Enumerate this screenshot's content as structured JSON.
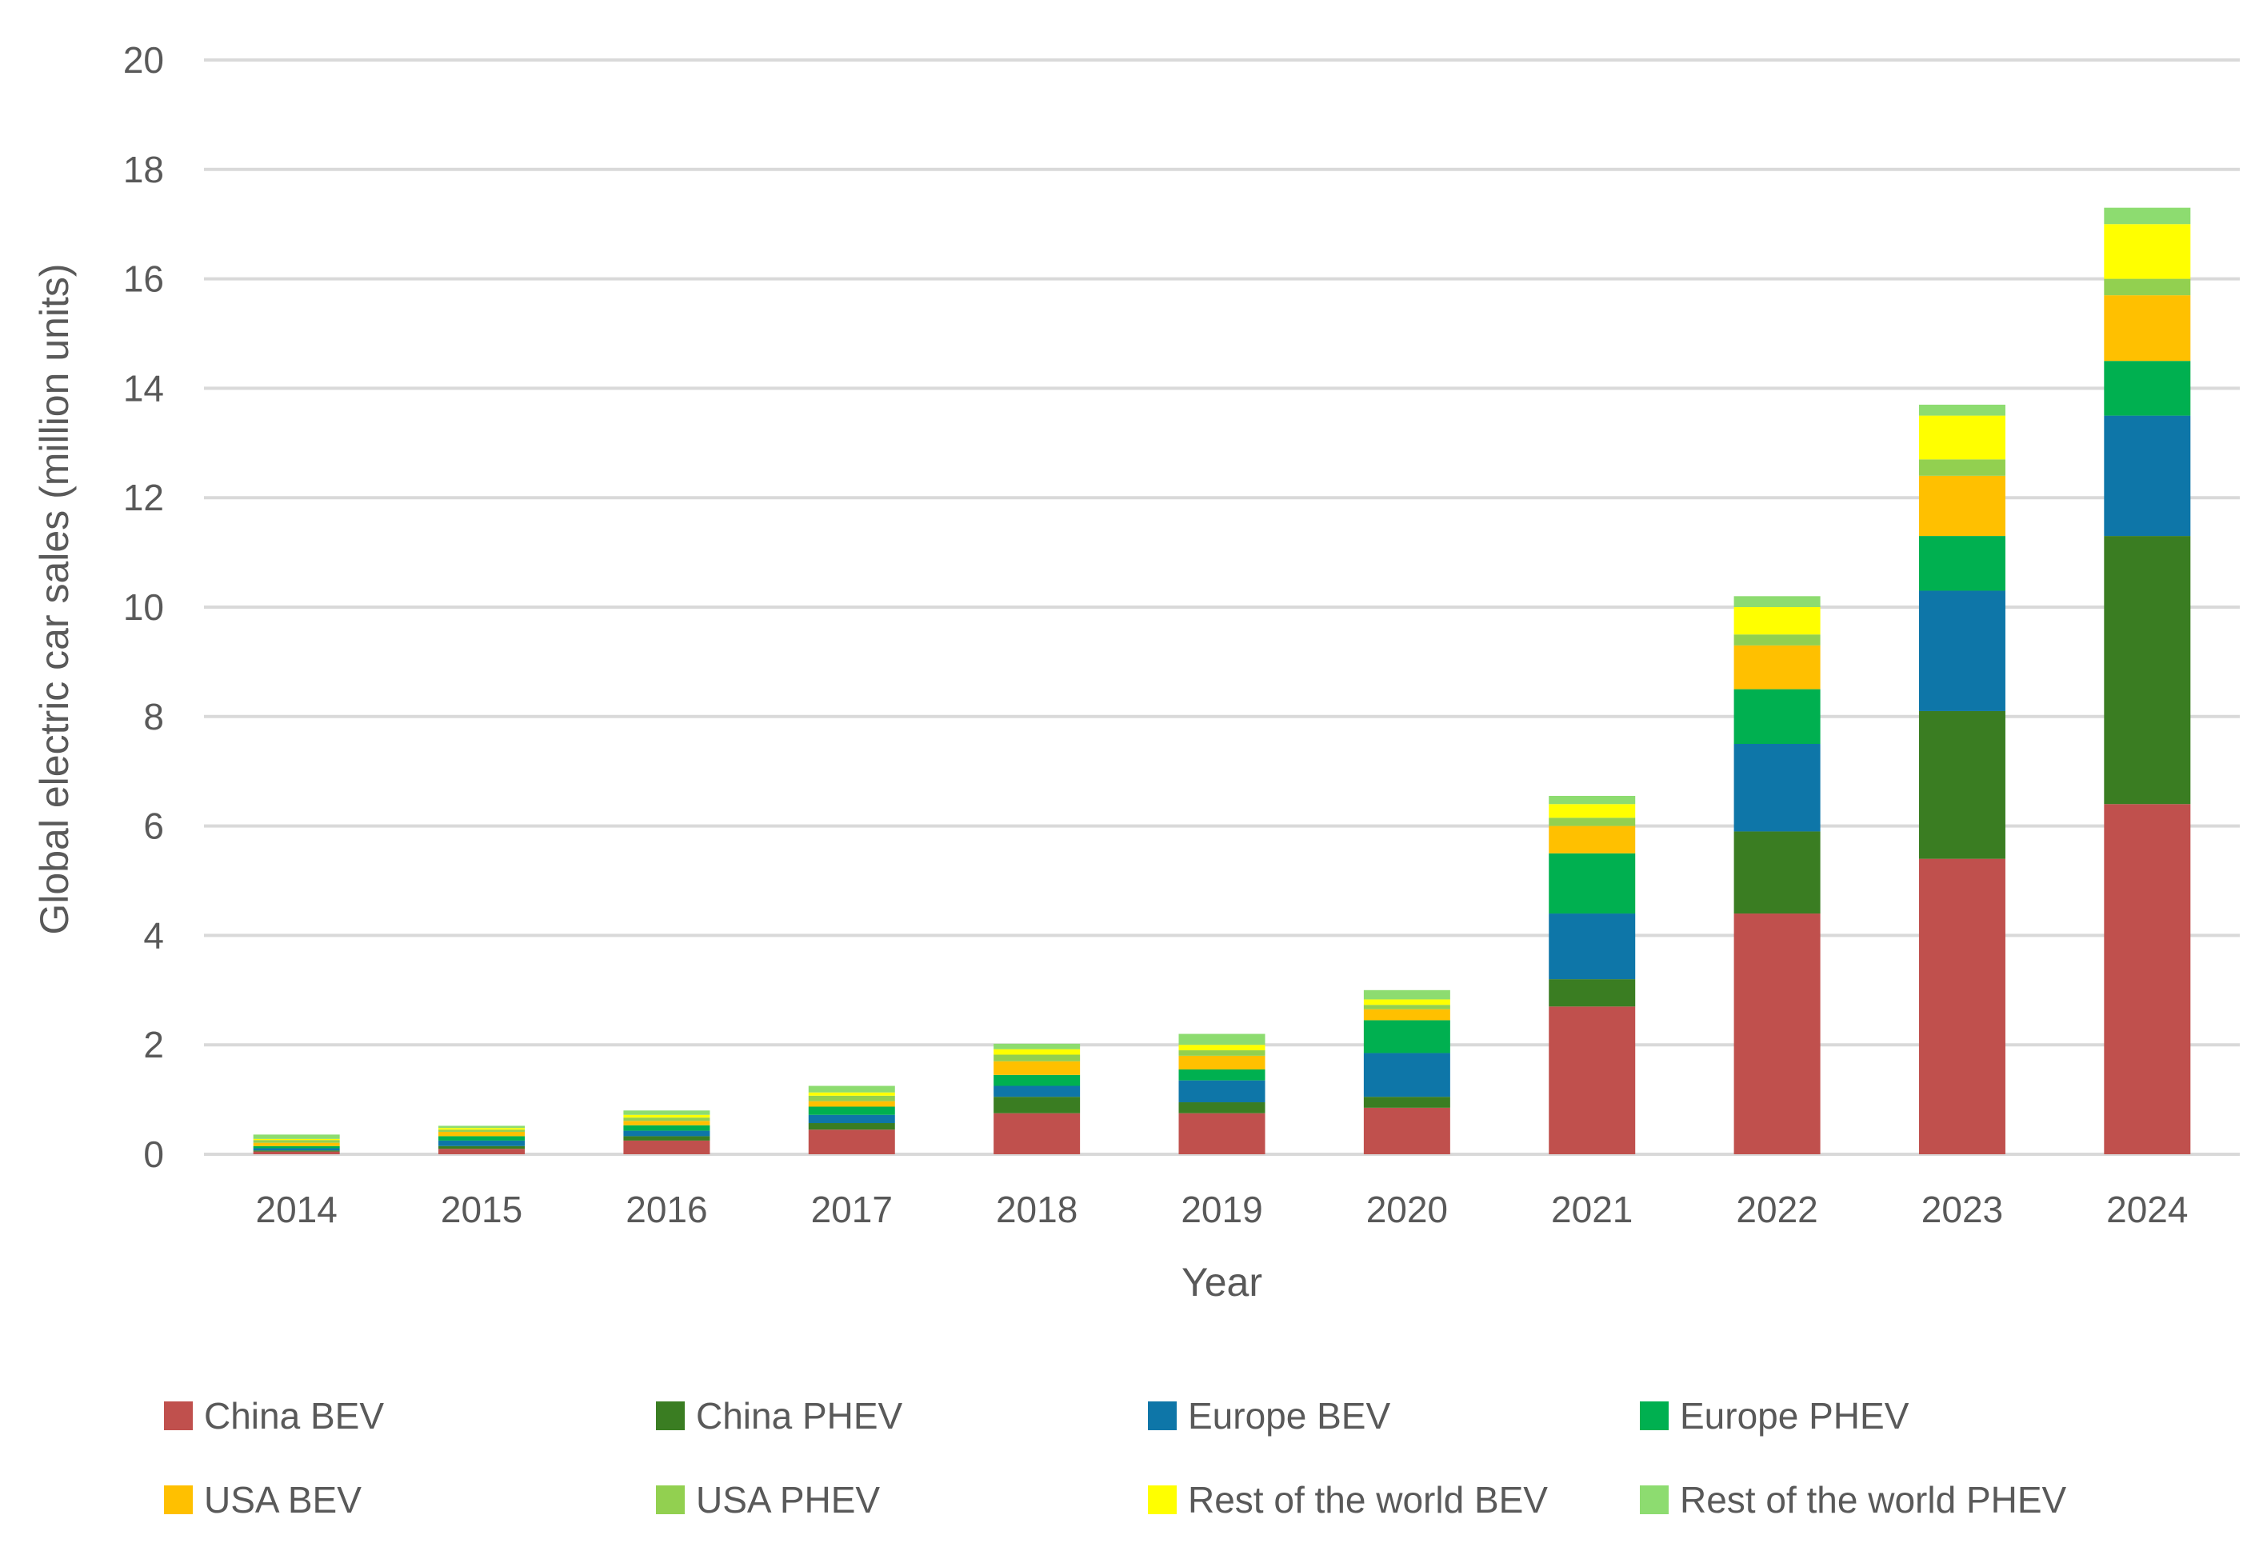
{
  "chart_data": {
    "type": "bar",
    "stacked": true,
    "title": "",
    "xlabel": "Year",
    "ylabel": "Global electric car sales (million units)",
    "ylim": [
      0,
      20
    ],
    "yticks": [
      0,
      2,
      4,
      6,
      8,
      10,
      12,
      14,
      16,
      18,
      20
    ],
    "grid": true,
    "legend_position": "bottom",
    "categories": [
      "2014",
      "2015",
      "2016",
      "2017",
      "2018",
      "2019",
      "2020",
      "2021",
      "2022",
      "2023",
      "2024"
    ],
    "series": [
      {
        "name": "China BEV",
        "color": "#C0504D",
        "values": [
          0.05,
          0.1,
          0.25,
          0.45,
          0.75,
          0.75,
          0.85,
          2.7,
          4.4,
          5.4,
          6.4
        ]
      },
      {
        "name": "China PHEV",
        "color": "#3A7D22",
        "values": [
          0.02,
          0.05,
          0.08,
          0.12,
          0.3,
          0.2,
          0.2,
          0.5,
          1.5,
          2.7,
          4.9
        ]
      },
      {
        "name": "Europe BEV",
        "color": "#0E76A8",
        "values": [
          0.04,
          0.1,
          0.1,
          0.15,
          0.2,
          0.4,
          0.8,
          1.2,
          1.6,
          2.2,
          2.2
        ]
      },
      {
        "name": "Europe PHEV",
        "color": "#00B050",
        "values": [
          0.04,
          0.08,
          0.1,
          0.15,
          0.2,
          0.2,
          0.6,
          1.1,
          1.0,
          1.0,
          1.0
        ]
      },
      {
        "name": "USA BEV",
        "color": "#FFC000",
        "values": [
          0.06,
          0.08,
          0.08,
          0.1,
          0.25,
          0.25,
          0.2,
          0.5,
          0.8,
          1.1,
          1.2
        ]
      },
      {
        "name": "USA PHEV",
        "color": "#92D050",
        "values": [
          0.05,
          0.04,
          0.06,
          0.1,
          0.12,
          0.1,
          0.08,
          0.15,
          0.2,
          0.3,
          0.3
        ]
      },
      {
        "name": "Rest of the world BEV",
        "color": "#FFFF00",
        "values": [
          0.02,
          0.03,
          0.05,
          0.06,
          0.1,
          0.1,
          0.1,
          0.25,
          0.5,
          0.8,
          1.0
        ]
      },
      {
        "name": "Rest of the world PHEV",
        "color": "#8DDC70",
        "values": [
          0.08,
          0.04,
          0.08,
          0.12,
          0.1,
          0.2,
          0.17,
          0.15,
          0.2,
          0.2,
          0.3
        ]
      }
    ]
  }
}
